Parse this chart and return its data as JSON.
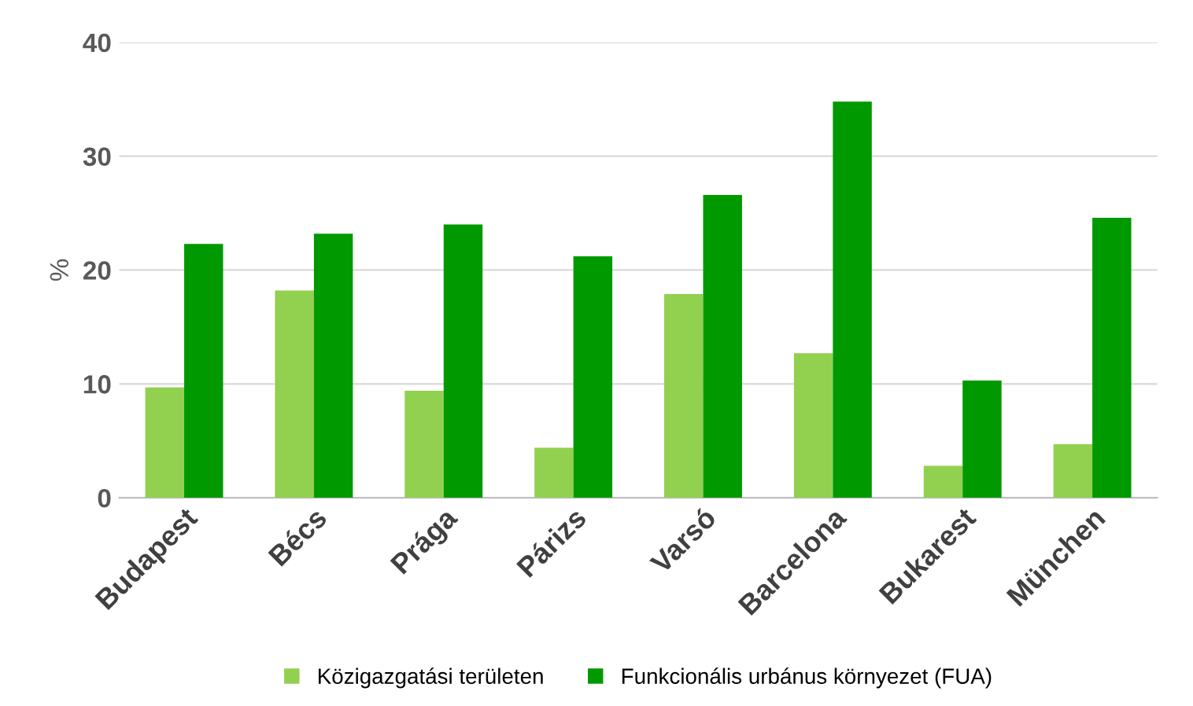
{
  "chart_data": {
    "type": "bar",
    "ylabel": "%",
    "categories": [
      "Budapest",
      "Bécs",
      "Prága",
      "Párizs",
      "Varsó",
      "Barcelona",
      "Bukarest",
      "München"
    ],
    "series": [
      {
        "name": "Közigazgatási területen",
        "color": "#92d050",
        "values": [
          9.7,
          18.2,
          9.4,
          4.4,
          17.9,
          12.7,
          2.8,
          4.7
        ]
      },
      {
        "name": "Funkcionális urbánus környezet (FUA)",
        "color": "#009900",
        "values": [
          22.3,
          23.2,
          24.0,
          21.2,
          26.6,
          34.8,
          10.3,
          24.6
        ]
      }
    ],
    "ylim": [
      0,
      40
    ],
    "yticks": [
      0,
      10,
      20,
      30,
      40
    ],
    "grid": "y",
    "legend": "bottom"
  }
}
